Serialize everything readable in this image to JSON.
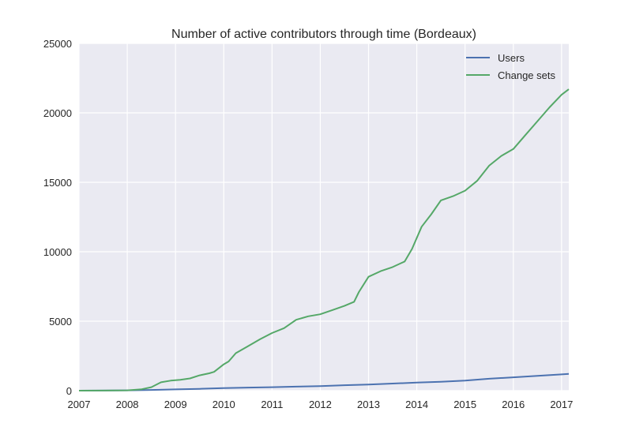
{
  "chart_data": {
    "type": "line",
    "title": "Number of active contributors through time (Bordeaux)",
    "xlabel": "",
    "ylabel": "",
    "xlim": [
      2007.0,
      2017.15
    ],
    "ylim": [
      0,
      25000
    ],
    "xticks": [
      2007,
      2008,
      2009,
      2010,
      2011,
      2012,
      2013,
      2014,
      2015,
      2016,
      2017
    ],
    "xtick_labels": [
      "2007",
      "2008",
      "2009",
      "2010",
      "2011",
      "2012",
      "2013",
      "2014",
      "2015",
      "2016",
      "2017"
    ],
    "yticks": [
      0,
      5000,
      10000,
      15000,
      20000,
      25000
    ],
    "ytick_labels": [
      "0",
      "5000",
      "10000",
      "15000",
      "20000",
      "25000"
    ],
    "grid": true,
    "legend_position": "top-right",
    "series": [
      {
        "name": "Users",
        "color": "#4c72b0",
        "points": [
          [
            2007.0,
            0
          ],
          [
            2008.0,
            20
          ],
          [
            2008.5,
            50
          ],
          [
            2009.0,
            90
          ],
          [
            2009.5,
            130
          ],
          [
            2010.0,
            180
          ],
          [
            2010.5,
            220
          ],
          [
            2011.0,
            250
          ],
          [
            2011.5,
            290
          ],
          [
            2012.0,
            330
          ],
          [
            2012.5,
            390
          ],
          [
            2013.0,
            440
          ],
          [
            2013.5,
            510
          ],
          [
            2014.0,
            580
          ],
          [
            2014.5,
            640
          ],
          [
            2015.0,
            720
          ],
          [
            2015.5,
            860
          ],
          [
            2016.0,
            960
          ],
          [
            2016.5,
            1060
          ],
          [
            2017.0,
            1170
          ],
          [
            2017.15,
            1210
          ]
        ]
      },
      {
        "name": "Change sets",
        "color": "#55a868",
        "points": [
          [
            2007.0,
            0
          ],
          [
            2007.5,
            5
          ],
          [
            2008.0,
            20
          ],
          [
            2008.3,
            100
          ],
          [
            2008.5,
            250
          ],
          [
            2008.7,
            600
          ],
          [
            2008.9,
            720
          ],
          [
            2009.1,
            780
          ],
          [
            2009.3,
            880
          ],
          [
            2009.5,
            1100
          ],
          [
            2009.7,
            1250
          ],
          [
            2009.8,
            1350
          ],
          [
            2010.0,
            1900
          ],
          [
            2010.1,
            2100
          ],
          [
            2010.25,
            2700
          ],
          [
            2010.5,
            3200
          ],
          [
            2010.75,
            3700
          ],
          [
            2011.0,
            4150
          ],
          [
            2011.25,
            4500
          ],
          [
            2011.5,
            5100
          ],
          [
            2011.75,
            5350
          ],
          [
            2012.0,
            5500
          ],
          [
            2012.25,
            5800
          ],
          [
            2012.5,
            6100
          ],
          [
            2012.7,
            6400
          ],
          [
            2012.8,
            7100
          ],
          [
            2013.0,
            8200
          ],
          [
            2013.25,
            8600
          ],
          [
            2013.5,
            8900
          ],
          [
            2013.75,
            9300
          ],
          [
            2013.9,
            10200
          ],
          [
            2014.1,
            11800
          ],
          [
            2014.3,
            12700
          ],
          [
            2014.5,
            13700
          ],
          [
            2014.75,
            14000
          ],
          [
            2015.0,
            14400
          ],
          [
            2015.25,
            15100
          ],
          [
            2015.5,
            16200
          ],
          [
            2015.75,
            16900
          ],
          [
            2016.0,
            17400
          ],
          [
            2016.25,
            18400
          ],
          [
            2016.5,
            19400
          ],
          [
            2016.75,
            20400
          ],
          [
            2017.0,
            21300
          ],
          [
            2017.15,
            21700
          ]
        ]
      }
    ]
  }
}
